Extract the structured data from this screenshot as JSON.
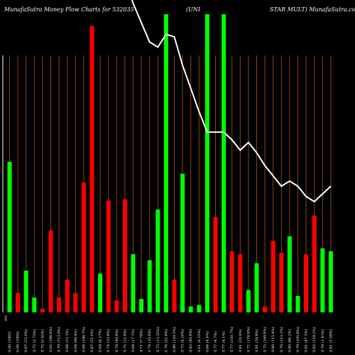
{
  "header": {
    "left": "MunafaSutra  Money Flow  Charts for 532035",
    "mid": "(UNI",
    "right": "STAR MULT) MunafaSutra.com"
  },
  "chart_data": {
    "type": "bar",
    "title": "MunafaSutra Money Flow Charts for 532035 (UNISTAR MULT) MunafaSutra.com",
    "colors": {
      "up": "#00ff00",
      "down": "#ff0000",
      "line": "#ffffff",
      "grid": "#8b4513",
      "background": "#000000"
    },
    "ylim": [
      0,
      100
    ],
    "axis_label": "0%",
    "bars": [
      {
        "x": "0.00 (1005)",
        "v": 50.5,
        "c": "up"
      },
      {
        "x": "0.00 (1005)",
        "v": 6.5,
        "c": "down"
      },
      {
        "x": "0.87 (23.0%)",
        "v": 14.0,
        "c": "up"
      },
      {
        "x": "0.75 (5.73%)",
        "v": 5.0,
        "c": "up"
      },
      {
        "x": "0.75 (5.45%)",
        "v": 1.2,
        "c": "down"
      },
      {
        "x": "0.65 (186.6%)",
        "v": 27.5,
        "c": "down"
      },
      {
        "x": "0.79 (723.9%)",
        "v": 5.0,
        "c": "down"
      },
      {
        "x": "0.68 (23.1%)",
        "v": 11.0,
        "c": "down"
      },
      {
        "x": "0.68 (69.4%)",
        "v": 6.5,
        "c": "down"
      },
      {
        "x": "0.68 (196.7%)",
        "v": 43.5,
        "c": "down"
      },
      {
        "x": "0.87 (22.0%)",
        "v": 96.0,
        "c": "down"
      },
      {
        "x": "0.69 (8.27%)",
        "v": 13.0,
        "c": "up"
      },
      {
        "x": "0.74 (33.9%)",
        "v": 37.5,
        "c": "down"
      },
      {
        "x": "0.78 (40.9%)",
        "v": 4.0,
        "c": "down"
      },
      {
        "x": "0.75 (15.9%)",
        "v": 38.0,
        "c": "down"
      },
      {
        "x": "0.69 (17.1%)",
        "v": 19.5,
        "c": "up"
      },
      {
        "x": "0.71 (7.79%)",
        "v": 4.5,
        "c": "up"
      },
      {
        "x": "0.74 (10.0%)",
        "v": 17.5,
        "c": "up"
      },
      {
        "x": "0.75 (13.35%)",
        "v": 34.5,
        "c": "up"
      },
      {
        "x": "0.76 (32.9%)",
        "v": 100,
        "c": "up"
      },
      {
        "x": "0.90 (120.5%)",
        "v": 11.0,
        "c": "down"
      },
      {
        "x": "0.73 (4.20%)",
        "v": 46.5,
        "c": "up"
      },
      {
        "x": "0.83 (40.9%)",
        "v": 2.0,
        "c": "up"
      },
      {
        "x": "0.61 (4.23%)",
        "v": 2.5,
        "c": "up"
      },
      {
        "x": "0.66 (4.9%)",
        "v": 100,
        "c": "up"
      },
      {
        "x": "0.77 (4.7%)",
        "v": 32.0,
        "c": "down"
      },
      {
        "x": "0.77 (4.1%)",
        "v": 100,
        "c": "up"
      },
      {
        "x": "0.77 (250.7%)",
        "v": 20.5,
        "c": "down"
      },
      {
        "x": "0.81 (20.4%)",
        "v": 19.5,
        "c": "down"
      },
      {
        "x": "0.72 (176.9%)",
        "v": 7.5,
        "c": "up"
      },
      {
        "x": "0.81 (28.8%)",
        "v": 16.5,
        "c": "up"
      },
      {
        "x": "0.75 (160.8%)",
        "v": 2.0,
        "c": "down"
      },
      {
        "x": "0.80 (115.4%)",
        "v": 24.0,
        "c": "down"
      },
      {
        "x": "0.76 (113.2%)",
        "v": 20.0,
        "c": "down"
      },
      {
        "x": "0.80 (86.2%)",
        "v": 25.5,
        "c": "up"
      },
      {
        "x": "0.78 (105.8%)",
        "v": 5.5,
        "c": "up"
      },
      {
        "x": "0.81 (47.3%)",
        "v": 19.5,
        "c": "down"
      },
      {
        "x": "0.85 (219.2%)",
        "v": 32.5,
        "c": "down"
      },
      {
        "x": "0.79 (1.41%)",
        "v": 21.5,
        "c": "up"
      },
      {
        "x": "0.81 (1.09%)",
        "v": 20.5,
        "c": "up"
      }
    ],
    "line": [
      {
        "bar": 0,
        "v": 160
      },
      {
        "bar": 4,
        "v": 175
      },
      {
        "bar": 8,
        "v": 185
      },
      {
        "bar": 12,
        "v": 150
      },
      {
        "bar": 15,
        "v": 120
      },
      {
        "bar": 17,
        "v": 105
      },
      {
        "bar": 18,
        "v": 103
      },
      {
        "bar": 19,
        "v": 108
      },
      {
        "bar": 20,
        "v": 107
      },
      {
        "bar": 21,
        "v": 96
      },
      {
        "bar": 22,
        "v": 87
      },
      {
        "bar": 23,
        "v": 78
      },
      {
        "bar": 24,
        "v": 70
      },
      {
        "bar": 25,
        "v": 70
      },
      {
        "bar": 26,
        "v": 70
      },
      {
        "bar": 27,
        "v": 67
      },
      {
        "bar": 28,
        "v": 63
      },
      {
        "bar": 29,
        "v": 66
      },
      {
        "bar": 30,
        "v": 62
      },
      {
        "bar": 31,
        "v": 57
      },
      {
        "bar": 32,
        "v": 53
      },
      {
        "bar": 33,
        "v": 49
      },
      {
        "bar": 34,
        "v": 51
      },
      {
        "bar": 35,
        "v": 49
      },
      {
        "bar": 36,
        "v": 45
      },
      {
        "bar": 37,
        "v": 43
      },
      {
        "bar": 38,
        "v": 46
      },
      {
        "bar": 39,
        "v": 49
      }
    ],
    "line_ylim": [
      0,
      110
    ]
  }
}
